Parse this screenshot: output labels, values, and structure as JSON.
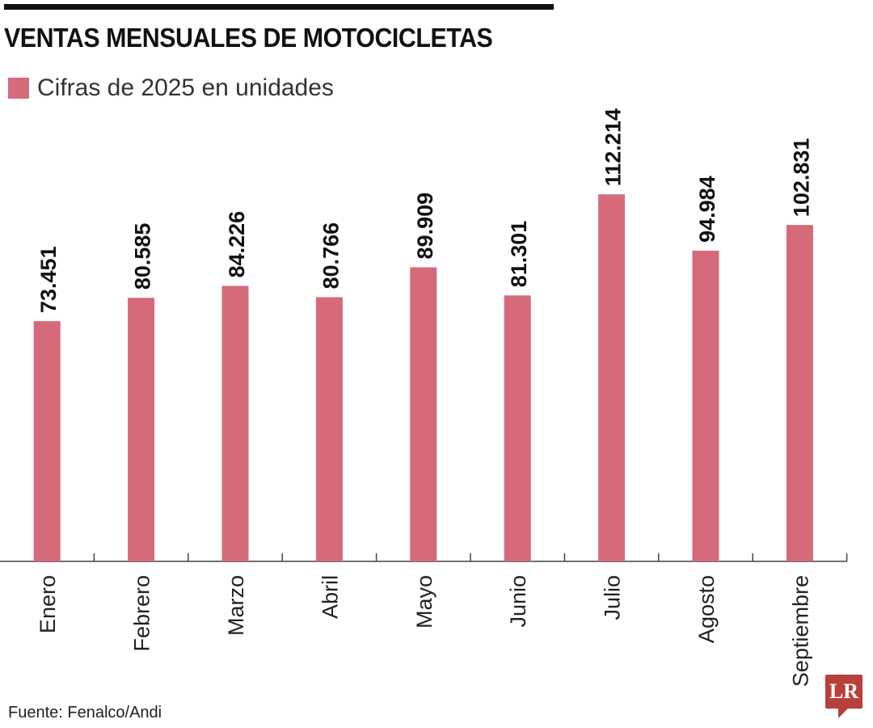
{
  "title": "VENTAS MENSUALES DE MOTOCICLETAS",
  "source": "Fuente: Fenalco/Andi",
  "logo": "LR",
  "colors": {
    "bar": "#d66a7b",
    "logo": "#b8403c"
  },
  "chart_data": {
    "type": "bar",
    "title": "VENTAS MENSUALES DE MOTOCICLETAS",
    "legend": [
      "Cifras de 2025 en unidades"
    ],
    "categories": [
      "Enero",
      "Febrero",
      "Marzo",
      "Abril",
      "Mayo",
      "Junio",
      "Julio",
      "Agosto",
      "Septiembre"
    ],
    "values": [
      73451,
      80585,
      84226,
      80766,
      89909,
      81301,
      112214,
      94984,
      102831
    ],
    "value_labels": [
      "73.451",
      "80.585",
      "84.226",
      "80.766",
      "89.909",
      "81.301",
      "112.214",
      "94.984",
      "102.831"
    ],
    "xlabel": "",
    "ylabel": "",
    "ylim": [
      0,
      120000
    ],
    "grid": false
  }
}
